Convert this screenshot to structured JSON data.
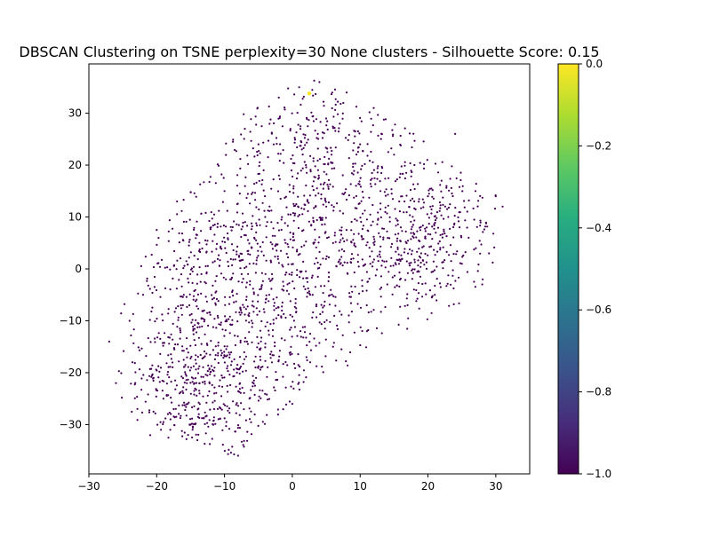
{
  "chart_data": {
    "type": "scatter",
    "title": "DBSCAN Clustering on TSNE perplexity=30 None clusters - Silhouette Score: 0.15",
    "xlabel": "",
    "ylabel": "",
    "xlim": [
      -30,
      35
    ],
    "ylim": [
      -39.5,
      39.5
    ],
    "xticks": [
      -30,
      -20,
      -10,
      0,
      10,
      20,
      30
    ],
    "yticks": [
      -30,
      -20,
      -10,
      0,
      10,
      20,
      30
    ],
    "grid": false,
    "colorbar": {
      "colormap": "viridis",
      "range": [
        -1.0,
        0.0
      ],
      "ticks": [
        -1.0,
        -0.8,
        -0.6,
        -0.4,
        -0.2,
        0.0
      ],
      "tick_labels": [
        "−1.0",
        "−0.8",
        "−0.6",
        "−0.4",
        "−0.2",
        "0.0"
      ]
    },
    "series": [
      {
        "label_value": -1,
        "color": "#440154",
        "approximate_count": 2000,
        "distribution_note": "dense oval cloud spanning roughly x from -28 to 32 and y from -36 to 36",
        "sample_points": [
          [
            -27,
            -14
          ],
          [
            -26,
            -22
          ],
          [
            -24,
            -10
          ],
          [
            -22,
            -5
          ],
          [
            -20,
            7.5
          ],
          [
            -19,
            -25
          ],
          [
            -18,
            -31
          ],
          [
            -17,
            13
          ],
          [
            -16,
            -5
          ],
          [
            -15,
            -30
          ],
          [
            -14,
            -33
          ],
          [
            -13,
            -8
          ],
          [
            -12,
            8
          ],
          [
            -11,
            -27
          ],
          [
            -10,
            15
          ],
          [
            -9,
            -2
          ],
          [
            -8,
            -36
          ],
          [
            -7,
            27
          ],
          [
            -6,
            -10
          ],
          [
            -5,
            24
          ],
          [
            -4,
            10
          ],
          [
            -3,
            -18
          ],
          [
            -2,
            33
          ],
          [
            -1,
            5
          ],
          [
            0,
            -26
          ],
          [
            1,
            35
          ],
          [
            2,
            20
          ],
          [
            3,
            -5
          ],
          [
            4,
            36
          ],
          [
            5,
            12
          ],
          [
            6,
            -15
          ],
          [
            7,
            28
          ],
          [
            8,
            34
          ],
          [
            9,
            2
          ],
          [
            10,
            24
          ],
          [
            11,
            -12
          ],
          [
            12,
            31
          ],
          [
            13,
            15
          ],
          [
            14,
            -3
          ],
          [
            15,
            22
          ],
          [
            16,
            8
          ],
          [
            17,
            -7
          ],
          [
            18,
            20
          ],
          [
            19,
            3
          ],
          [
            20,
            14
          ],
          [
            21,
            -5
          ],
          [
            22,
            17
          ],
          [
            23,
            10
          ],
          [
            24,
            26
          ],
          [
            25,
            1
          ],
          [
            26,
            6
          ],
          [
            27,
            15
          ],
          [
            28,
            -3
          ],
          [
            29,
            3
          ],
          [
            30,
            14
          ],
          [
            31,
            12
          ]
        ]
      },
      {
        "label_value": 0,
        "color": "#fde725",
        "points": [
          [
            2.5,
            33.8
          ]
        ]
      }
    ]
  }
}
